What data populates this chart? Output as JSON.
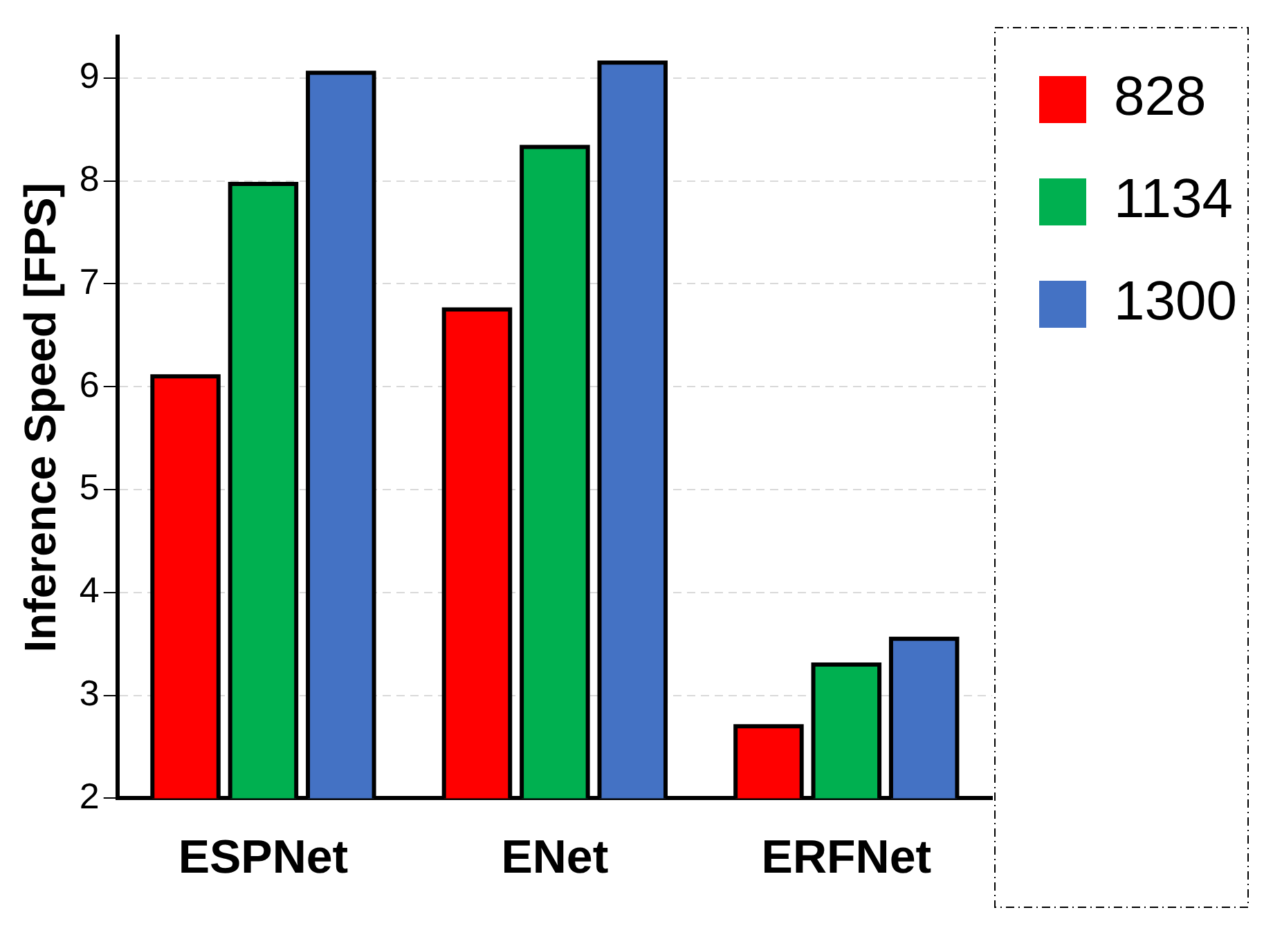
{
  "chart_data": {
    "type": "bar",
    "ylabel": "Inference Speed [FPS]",
    "categories": [
      "ESPNet",
      "ENet",
      "ERFNet"
    ],
    "series": [
      {
        "name": "828",
        "color": "#ff0000",
        "values": [
          6.1,
          6.75,
          2.7
        ]
      },
      {
        "name": "1134",
        "color": "#00b050",
        "values": [
          7.97,
          8.33,
          3.3
        ]
      },
      {
        "name": "1300",
        "color": "#4472c4",
        "values": [
          9.05,
          9.15,
          3.55
        ]
      }
    ],
    "ylim": [
      2,
      9.4
    ],
    "yticks": [
      2,
      3,
      4,
      5,
      6,
      7,
      8,
      9
    ],
    "grid": "y",
    "legend": "top right"
  }
}
